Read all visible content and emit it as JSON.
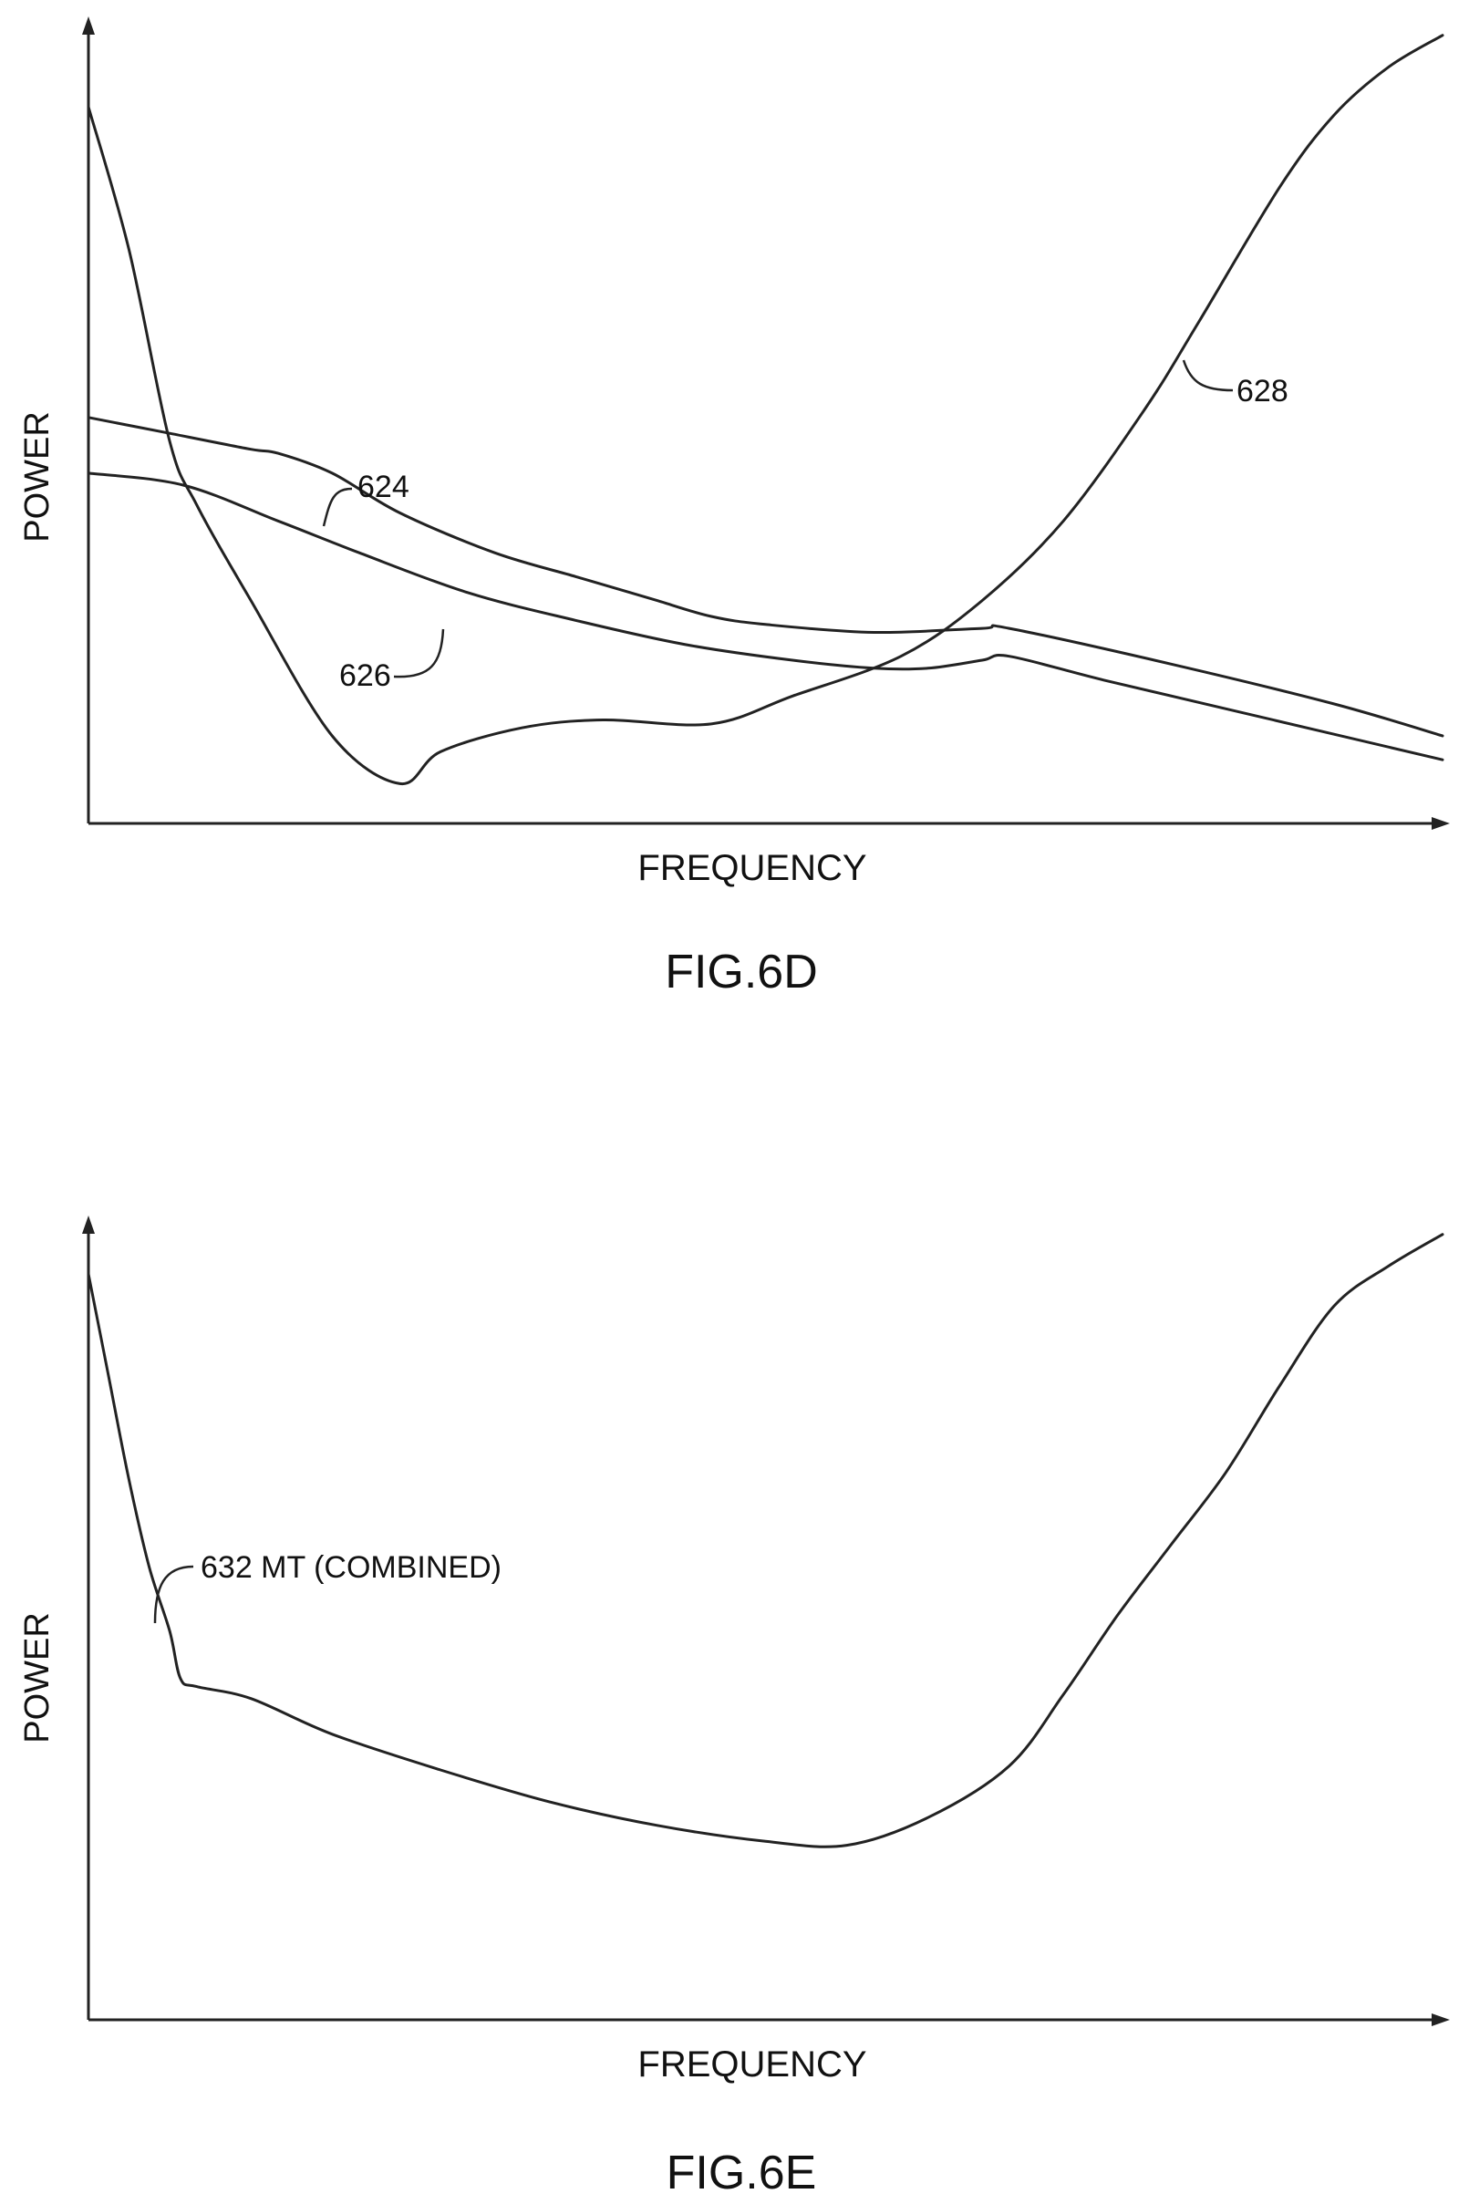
{
  "chart_data": [
    {
      "type": "line",
      "figure_label": "FIG.6D",
      "xlabel": "FREQUENCY",
      "ylabel": "POWER",
      "xlim": [
        0,
        100
      ],
      "ylim": [
        0,
        100
      ],
      "grid": false,
      "series": [
        {
          "name": "624",
          "x": [
            0,
            6,
            12,
            14,
            18,
            23,
            30,
            36,
            40,
            42,
            46,
            50,
            58,
            66,
            68,
            80,
            92,
            100
          ],
          "y": [
            51,
            49,
            47,
            46.5,
            44,
            39,
            34,
            31,
            29,
            28,
            26,
            25,
            24,
            24.5,
            24.5,
            20,
            15,
            11
          ]
        },
        {
          "name": "626",
          "x": [
            0,
            7,
            14,
            20,
            28,
            36,
            44,
            52,
            58,
            62,
            66,
            68,
            75,
            85,
            100
          ],
          "y": [
            44,
            42.5,
            38,
            34,
            29,
            25.5,
            22.5,
            20.5,
            19.5,
            19.5,
            20.5,
            21,
            18,
            14,
            8
          ]
        },
        {
          "name": "628",
          "x": [
            0,
            3,
            6,
            8,
            12,
            18,
            23,
            26,
            32,
            38,
            46,
            52,
            60,
            66,
            72,
            78,
            82,
            88,
            92,
            96,
            100
          ],
          "y": [
            90,
            72,
            48,
            40,
            28,
            11,
            5,
            9,
            12,
            13,
            12.5,
            16,
            21,
            28,
            38,
            52,
            63,
            80,
            89,
            95,
            99
          ]
        }
      ]
    },
    {
      "type": "line",
      "figure_label": "FIG.6E",
      "xlabel": "FREQUENCY",
      "ylabel": "POWER",
      "xlim": [
        0,
        100
      ],
      "ylim": [
        0,
        100
      ],
      "grid": false,
      "series": [
        {
          "name": "632 MT (COMBINED)",
          "x": [
            0,
            1.5,
            3,
            4.5,
            6,
            6.8,
            8,
            12,
            18,
            26,
            34,
            42,
            50,
            56,
            62,
            68,
            72,
            76,
            80,
            84,
            88,
            92,
            96,
            100
          ],
          "y": [
            94,
            81,
            68,
            57,
            49,
            43,
            42,
            40.5,
            36,
            31.5,
            27.5,
            24.5,
            22.5,
            22,
            25.5,
            32,
            41,
            51,
            60,
            69,
            80,
            90,
            95,
            99
          ]
        }
      ]
    }
  ],
  "labels": {
    "fig6d": {
      "ylabel": "POWER",
      "xlabel": "FREQUENCY",
      "caption": "FIG.6D",
      "ref_624": "624",
      "ref_626": "626",
      "ref_628": "628"
    },
    "fig6e": {
      "ylabel": "POWER",
      "xlabel": "FREQUENCY",
      "caption": "FIG.6E",
      "ref_632": "632 MT (COMBINED)"
    }
  }
}
